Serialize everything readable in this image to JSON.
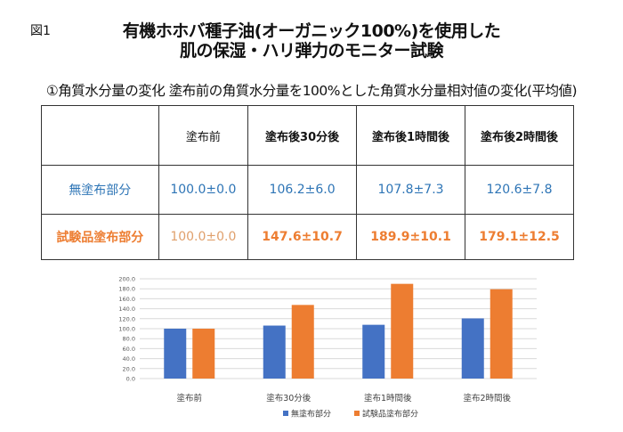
{
  "figure_label": "図1",
  "title_line1": "有機ホホバ種子油(オーガニック100%)を使用した",
  "title_line2": "肌の保湿・ハリ弾力のモニター試験",
  "subtitle": "①角質水分量の変化 塗布前の角質水分量を100%とした角質水分量相対値の変化(平均値)",
  "table": {
    "headers": [
      "",
      "塗布前",
      "塗布後30分後",
      "塗布後1時間後",
      "塗布後2時間後"
    ],
    "rows": [
      {
        "label": "無塗布部分",
        "cells": [
          "100.0±0.0",
          "106.2±6.0",
          "107.8±7.3",
          "120.6±7.8"
        ]
      },
      {
        "label": "試験品塗布部分",
        "cells": [
          "100.0±0.0",
          "147.6±10.7",
          "189.9±10.1",
          "179.1±12.5"
        ]
      }
    ]
  },
  "chart_data": {
    "type": "bar",
    "categories": [
      "塗布前",
      "塗布30分後",
      "塗布1時間後",
      "塗布2時間後"
    ],
    "series": [
      {
        "name": "無塗布部分",
        "values": [
          100.0,
          106.2,
          107.8,
          120.6
        ],
        "color": "#4472c4"
      },
      {
        "name": "試験品塗布部分",
        "values": [
          100.0,
          147.6,
          189.9,
          179.1
        ],
        "color": "#ed7d31"
      }
    ],
    "ylim": [
      0,
      200
    ],
    "yticks": [
      "0.0",
      "20.0",
      "40.0",
      "60.0",
      "80.0",
      "100.0",
      "120.0",
      "140.0",
      "160.0",
      "180.0",
      "200.0"
    ],
    "grid": true,
    "legend": "bottom"
  }
}
